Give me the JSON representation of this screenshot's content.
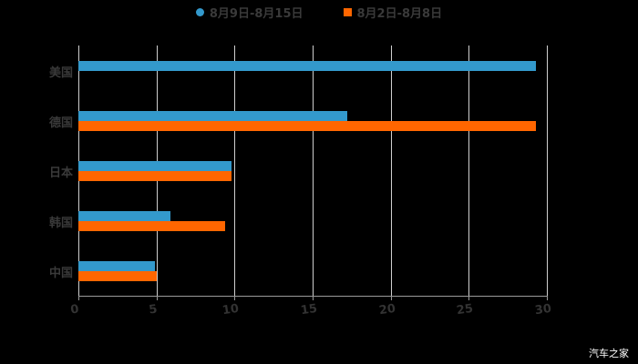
{
  "chart_data": {
    "type": "bar",
    "orientation": "horizontal",
    "title": "",
    "xlabel": "",
    "ylabel": "",
    "categories": [
      "美国",
      "德国",
      "日本",
      "韩国",
      "中国"
    ],
    "series": [
      {
        "name": "8月9日-8月15日",
        "color": "#3399CC",
        "values": [
          29.3,
          17.2,
          9.8,
          5.9,
          4.9
        ]
      },
      {
        "name": "8月2日-8月8日",
        "color": "#FF6600",
        "values": [
          0,
          29.3,
          9.8,
          9.4,
          5.0
        ]
      }
    ],
    "xlim": [
      0,
      30
    ],
    "xticks": [
      "0",
      "5",
      "10",
      "15",
      "20",
      "25",
      "30"
    ],
    "grid": true,
    "legend_position": "top"
  },
  "legend": {
    "items": [
      {
        "label": "8月9日-8月15日",
        "color": "#3399CC",
        "marker": "circle"
      },
      {
        "label": "8月2日-8月8日",
        "color": "#FF6600",
        "marker": "square"
      }
    ]
  },
  "watermark": "汽车之家"
}
